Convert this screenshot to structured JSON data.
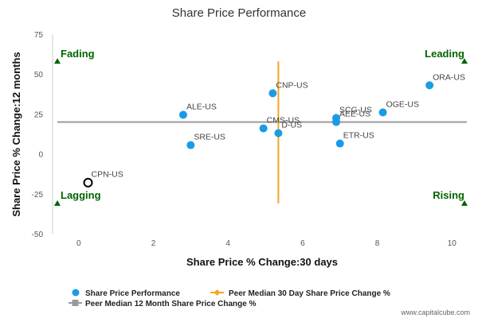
{
  "chart_data": {
    "type": "scatter",
    "title": "Share Price Performance",
    "xlabel": "Share Price % Change:30 days",
    "ylabel": "Share Price % Change:12 months",
    "xlim": [
      -0.7,
      10.4
    ],
    "ylim": [
      -50,
      75
    ],
    "xticks": [
      0,
      2,
      4,
      6,
      8,
      10
    ],
    "yticks": [
      -50,
      -25,
      0,
      25,
      50,
      75
    ],
    "series": [
      {
        "name": "Share Price Performance",
        "color": "#1a9be6",
        "points": [
          {
            "label": "ORA-US",
            "x": 9.4,
            "y": 43
          },
          {
            "label": "CNP-US",
            "x": 5.2,
            "y": 38
          },
          {
            "label": "OGE-US",
            "x": 8.15,
            "y": 26
          },
          {
            "label": "ALE-US",
            "x": 2.8,
            "y": 24.5
          },
          {
            "label": "SCG-US",
            "x": 6.9,
            "y": 22.5
          },
          {
            "label": "AEE-US",
            "x": 6.9,
            "y": 20
          },
          {
            "label": "CMS-US",
            "x": 4.95,
            "y": 16
          },
          {
            "label": "D-US",
            "x": 5.35,
            "y": 13
          },
          {
            "label": "SRE-US",
            "x": 3.0,
            "y": 5.5
          },
          {
            "label": "ETR-US",
            "x": 7.0,
            "y": 6.5
          }
        ]
      }
    ],
    "highlight": {
      "label": "CPN-US",
      "x": 0.25,
      "y": -18
    },
    "peer_median_30d": {
      "name": "Peer Median 30 Day Share Price Change %",
      "x": 5.35,
      "y_range": [
        -31,
        58
      ],
      "color": "#f5a623"
    },
    "peer_median_12m": {
      "name": "Peer Median 12 Month Share Price Change %",
      "y": 20,
      "color": "#999999"
    },
    "quadrants": [
      {
        "label": "Fading",
        "x": -0.7,
        "y": 58,
        "position": "top-left"
      },
      {
        "label": "Leading",
        "x": 10.4,
        "y": 58,
        "position": "top-right"
      },
      {
        "label": "Lagging",
        "x": -0.7,
        "y": -31,
        "position": "bottom-left"
      },
      {
        "label": "Rising",
        "x": 10.4,
        "y": -31,
        "position": "bottom-right"
      }
    ],
    "legend_position": "bottom-left",
    "grid": false
  },
  "credit": "www.capitalcube.com"
}
